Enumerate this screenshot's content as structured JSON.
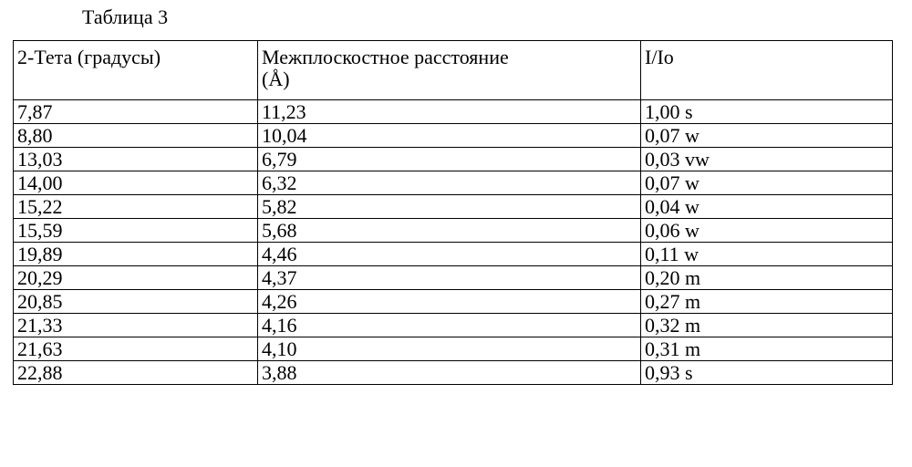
{
  "caption": "Таблица 3",
  "table": {
    "headers": [
      "2-Тета (градусы)",
      [
        "Межплоскостное расстояние",
        "(Å)"
      ],
      "I/Io"
    ],
    "rows": [
      [
        "7,87",
        "11,23",
        "1,00 s"
      ],
      [
        "8,80",
        "10,04",
        "0,07 w"
      ],
      [
        "13,03",
        "6,79",
        "0,03 vw"
      ],
      [
        "14,00",
        "6,32",
        "0,07 w"
      ],
      [
        "15,22",
        "5,82",
        "0,04 w"
      ],
      [
        "15,59",
        "5,68",
        "0,06 w"
      ],
      [
        "19,89",
        "4,46",
        "0,11 w"
      ],
      [
        "20,29",
        "4,37",
        "0,20 m"
      ],
      [
        "20,85",
        "4,26",
        "0,27 m"
      ],
      [
        "21,33",
        "4,16",
        "0,32 m"
      ],
      [
        "21,63",
        "4,10",
        "0,31 m"
      ],
      [
        "22,88",
        "3,88",
        "0,93 s"
      ]
    ]
  }
}
